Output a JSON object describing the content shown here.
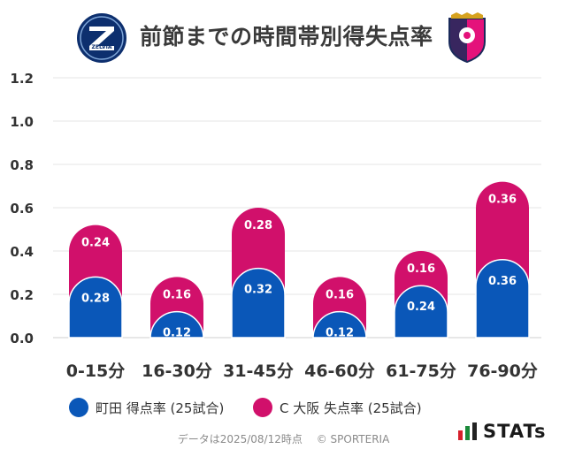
{
  "header": {
    "title": "前節までの時間帯別得失点率",
    "left_logo_text": "ZELVIA"
  },
  "chart_data": {
    "type": "bar",
    "stacked": true,
    "categories": [
      "0-15分",
      "16-30分",
      "31-45分",
      "46-60分",
      "61-75分",
      "76-90分"
    ],
    "series": [
      {
        "name": "町田 得点率 (25試合)",
        "color": "#0a57b8",
        "values": [
          0.28,
          0.12,
          0.32,
          0.12,
          0.24,
          0.36
        ]
      },
      {
        "name": "C大阪 失点率 (25試合)",
        "color": "#d1106b",
        "values": [
          0.24,
          0.16,
          0.28,
          0.16,
          0.16,
          0.36
        ]
      }
    ],
    "data_labels": [
      [
        "0.28",
        "0.12",
        "0.32",
        "0.12",
        "0.24",
        "0.36"
      ],
      [
        "0.24",
        "0.16",
        "0.28",
        "0.16",
        "0.16",
        "0.36"
      ]
    ],
    "ylim": [
      0,
      1.2
    ],
    "yticks": [
      "0.0",
      "0.2",
      "0.4",
      "0.6",
      "0.8",
      "1.0",
      "1.2"
    ],
    "grid": true,
    "legend_position": "bottom-left"
  },
  "legend": {
    "items": [
      {
        "label": "町田 得点率 (25試合)",
        "color": "#0a57b8"
      },
      {
        "label": "C 大阪 失点率 (25試合)",
        "color": "#d1106b"
      }
    ]
  },
  "footer": {
    "date_text": "データは2025/08/12時点",
    "credit": "© SPORTERIA"
  },
  "brand": {
    "stats_text": "STATs",
    "stats_colors": [
      "#d6202c",
      "#1b8a3a",
      "#222222"
    ]
  }
}
